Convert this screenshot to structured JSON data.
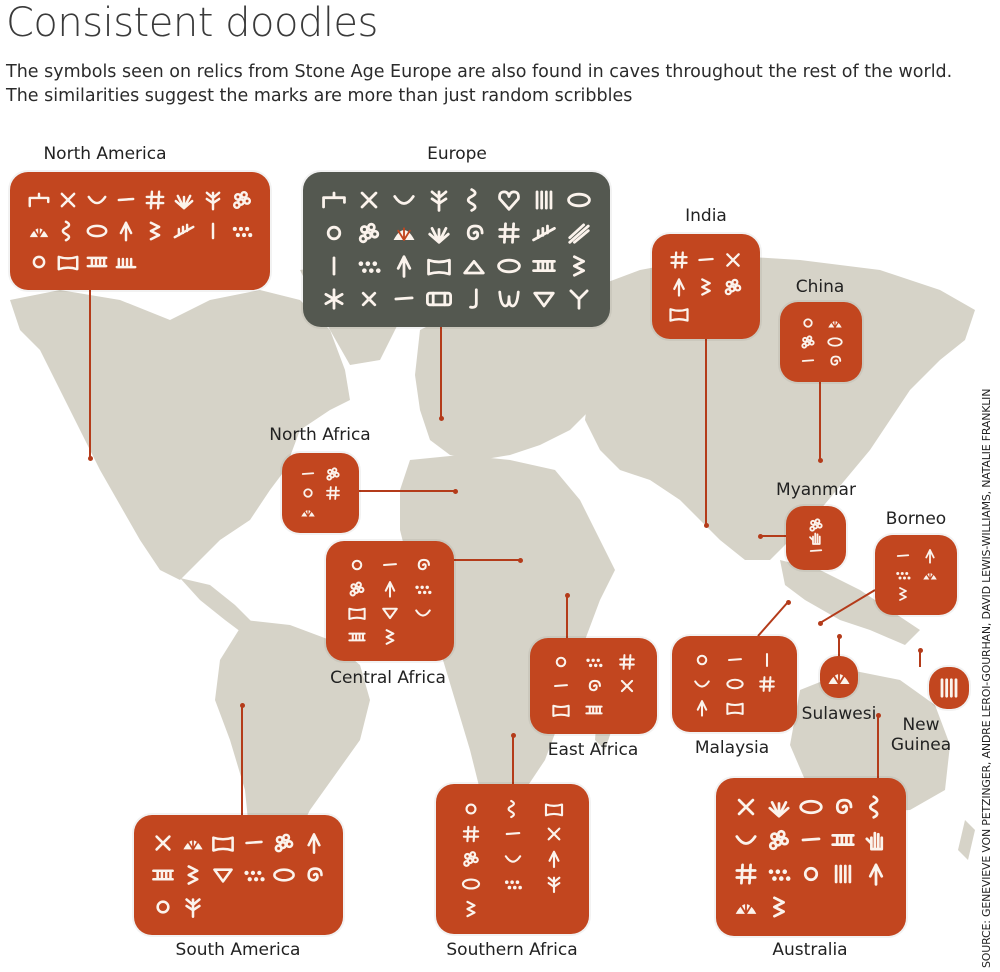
{
  "title": "Consistent doodles",
  "subtitle_lines": [
    "The symbols seen on relics from Stone Age Europe are also found in caves throughout the rest of the world.",
    "The similarities suggest the marks are more than just random scribbles"
  ],
  "source": "SOURCE: GENEVIEVE VON PETZINGER, ANDRE LEROI-GOURHAN, DAVID LEWIS-WILLIAMS, NATALIE FRANKLIN",
  "colors": {
    "region": "#c2461f",
    "europe": "#545850",
    "map": "#d6d3c8",
    "symbol": "#fbf3ec",
    "connector": "#b43b1a"
  },
  "regions": {
    "north_america": {
      "label": "North America",
      "symbols": [
        "tectiform",
        "cross",
        "curve",
        "line",
        "hash",
        "flabelliform",
        "branch",
        "cluster",
        "shell",
        "serpentine",
        "oval",
        "triangle",
        "zigzag",
        "penniform",
        "line-vertical",
        "dots",
        "circle",
        "rectangle",
        "scalariform",
        "comb"
      ]
    },
    "europe": {
      "label": "Europe",
      "symbols": [
        "tectiform",
        "cross",
        "curve",
        "branch",
        "serpentine",
        "heart",
        "finger-flutings",
        "oval",
        "circle",
        "cluster",
        "shell",
        "flabelliform",
        "spiral",
        "hash",
        "penniform",
        "claviform",
        "line-vertical",
        "dots",
        "triangle",
        "rectangle",
        "aviform",
        "oval",
        "scalariform",
        "zigzag",
        "asterisk",
        "cross-open",
        "line",
        "tectiform-box",
        "hook",
        "wavy-w",
        "inverted-triangle",
        "y-shape"
      ]
    },
    "india": {
      "label": "India",
      "symbols": [
        "hash",
        "line",
        "cross",
        "triangle",
        "zigzag",
        "cluster",
        "rectangle"
      ]
    },
    "china": {
      "label": "China",
      "symbols": [
        "circle",
        "shell",
        "cluster",
        "oval",
        "line",
        "spiral"
      ]
    },
    "north_africa": {
      "label": "North Africa",
      "symbols": [
        "line",
        "cluster",
        "circle",
        "hash",
        "shell"
      ]
    },
    "myanmar": {
      "label": "Myanmar",
      "symbols": [
        "cluster",
        "hand",
        "line"
      ]
    },
    "borneo": {
      "label": "Borneo",
      "symbols": [
        "line",
        "triangle",
        "dots",
        "shell",
        "zigzag"
      ]
    },
    "central_africa": {
      "label": "Central Africa",
      "symbols": [
        "circle",
        "line",
        "spiral",
        "cluster",
        "triangle",
        "dots",
        "rectangle",
        "inverted-triangle",
        "curve",
        "scalariform",
        "zigzag"
      ]
    },
    "east_africa": {
      "label": "East Africa",
      "symbols": [
        "circle",
        "dots",
        "hash",
        "line",
        "spiral",
        "cross",
        "rectangle",
        "scalariform"
      ]
    },
    "malaysia": {
      "label": "Malaysia",
      "symbols": [
        "circle",
        "line",
        "line-vertical",
        "curve",
        "oval",
        "hash",
        "triangle",
        "rectangle"
      ]
    },
    "sulawesi": {
      "label": "Sulawesi",
      "symbols": [
        "shell"
      ]
    },
    "new_guinea": {
      "label": "New Guinea",
      "symbols": [
        "finger-flutings"
      ]
    },
    "south_america": {
      "label": "South America",
      "symbols": [
        "cross",
        "shell",
        "rectangle",
        "line",
        "cluster",
        "triangle",
        "scalariform",
        "zigzag",
        "inverted-triangle",
        "dots",
        "oval",
        "spiral",
        "circle",
        "branch"
      ]
    },
    "southern_africa": {
      "label": "Southern Africa",
      "symbols": [
        "circle",
        "serpentine",
        "rectangle",
        "hash",
        "line",
        "cross",
        "cluster",
        "curve",
        "triangle",
        "oval",
        "dots",
        "branch",
        "zigzag"
      ]
    },
    "australia": {
      "label": "Australia",
      "symbols": [
        "cross",
        "flabelliform",
        "oval",
        "spiral",
        "serpentine",
        "curve",
        "cluster",
        "line",
        "scalariform",
        "hand",
        "hash",
        "dots",
        "circle",
        "finger-flutings",
        "triangle",
        "shell",
        "zigzag"
      ]
    }
  }
}
